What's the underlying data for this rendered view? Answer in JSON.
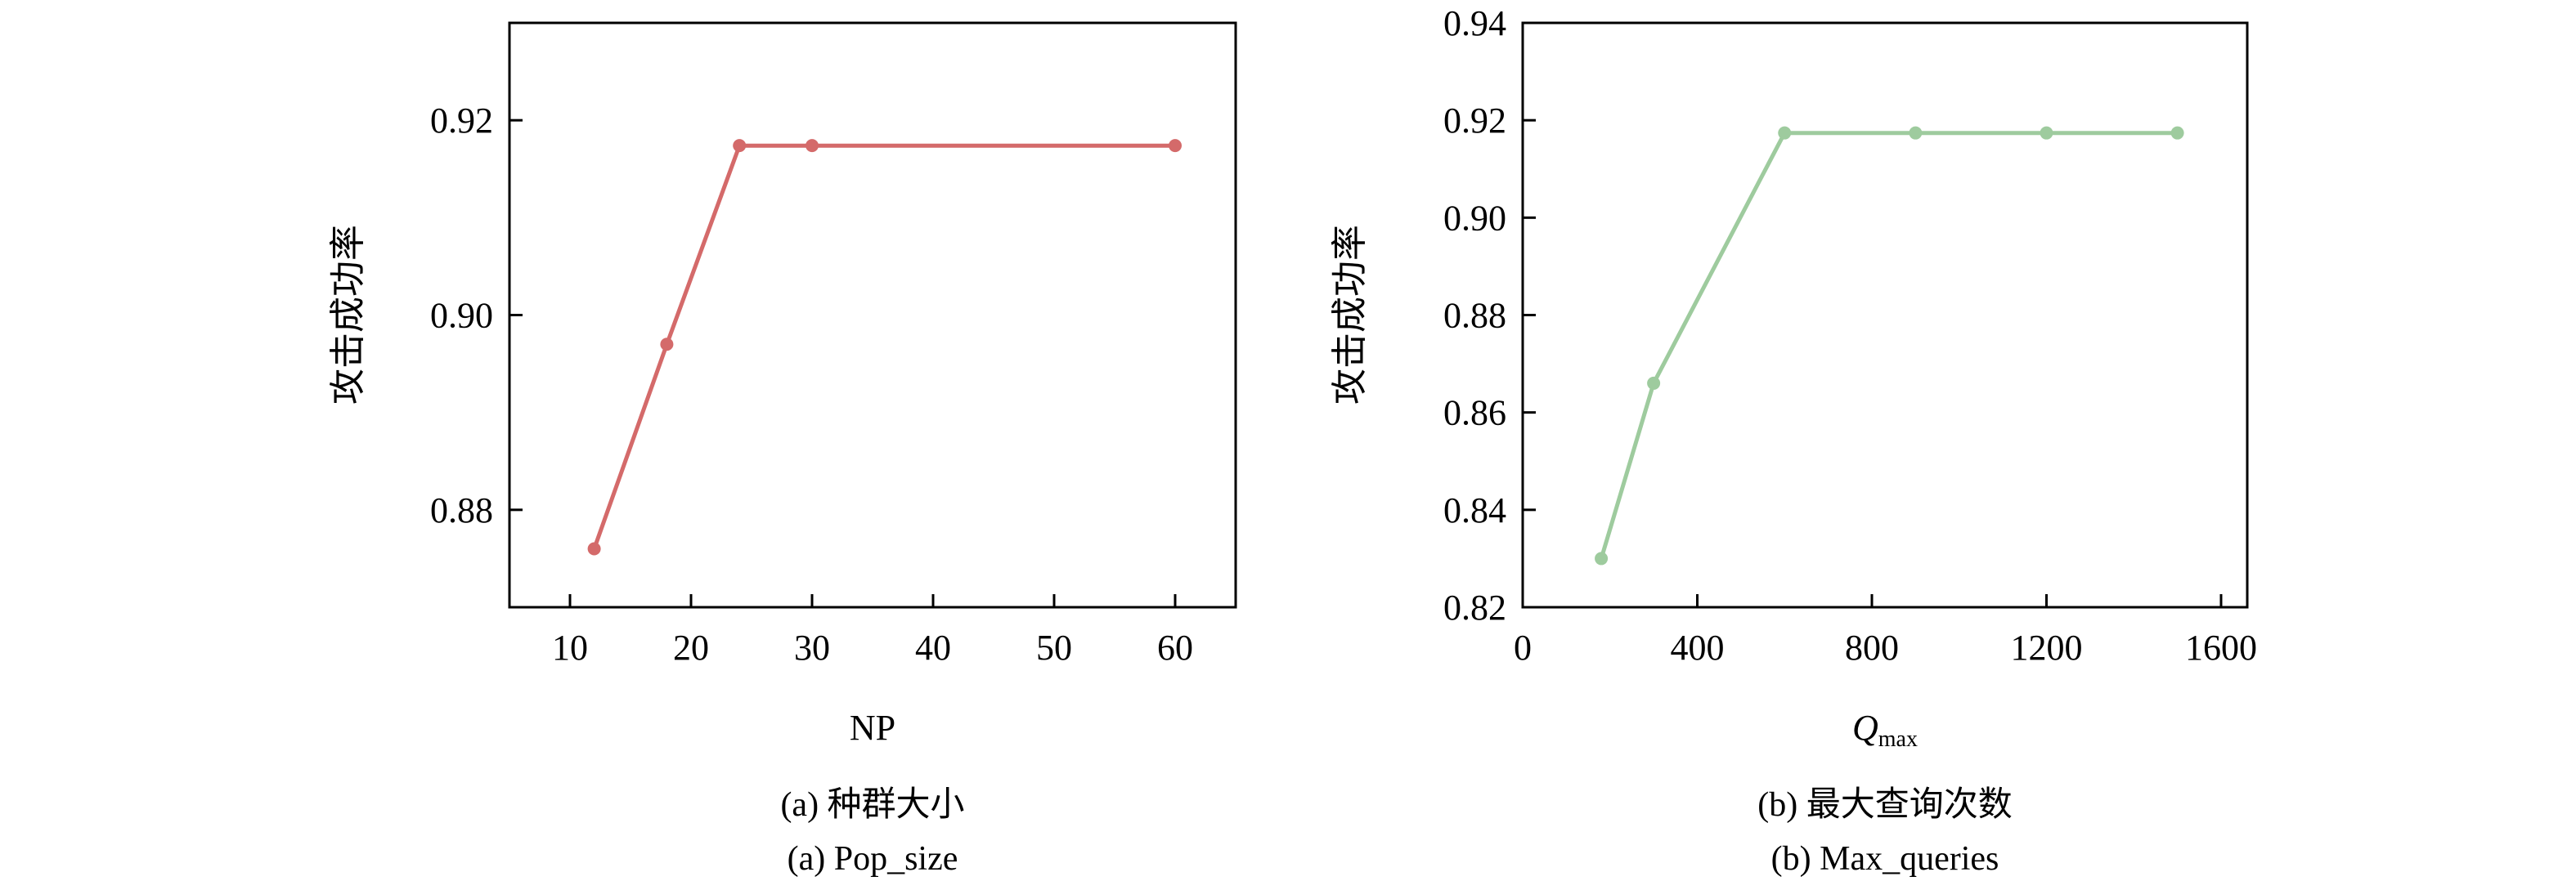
{
  "chart_data": [
    {
      "type": "line",
      "xlabel": "NP",
      "ylabel": "攻击成功率",
      "caption_cn": "(a) 种群大小",
      "caption_en": "(a) Pop_size",
      "color": "#d46a6a",
      "xlim": [
        5,
        65
      ],
      "ylim": [
        0.87,
        0.93
      ],
      "xticks": [
        10,
        20,
        30,
        40,
        50,
        60
      ],
      "xtick_labels": [
        "10",
        "20",
        "30",
        "40",
        "50",
        "60"
      ],
      "yticks": [
        0.88,
        0.9,
        0.92
      ],
      "ytick_labels": [
        "0.88",
        "0.90",
        "0.92"
      ],
      "grid": false,
      "x": [
        12,
        18,
        24,
        30,
        60
      ],
      "y": [
        0.876,
        0.897,
        0.9174,
        0.9174,
        0.9174
      ]
    },
    {
      "type": "line",
      "xlabel": "Q",
      "xlabel_sub": "max",
      "ylabel": "攻击成功率",
      "caption_cn": "(b) 最大查询次数",
      "caption_en": "(b) Max_queries",
      "color": "#9ecb9e",
      "xlim": [
        0,
        1660
      ],
      "ylim": [
        0.82,
        0.94
      ],
      "xticks": [
        0,
        400,
        800,
        1200,
        1600
      ],
      "xtick_labels": [
        "0",
        "400",
        "800",
        "1200",
        "1600"
      ],
      "yticks": [
        0.82,
        0.84,
        0.86,
        0.88,
        0.9,
        0.92,
        0.94
      ],
      "ytick_labels": [
        "0.82",
        "0.84",
        "0.86",
        "0.88",
        "0.90",
        "0.92",
        "0.94"
      ],
      "grid": false,
      "x": [
        180,
        300,
        600,
        900,
        1200,
        1500
      ],
      "y": [
        0.83,
        0.866,
        0.9174,
        0.9174,
        0.9174,
        0.9174
      ]
    }
  ]
}
